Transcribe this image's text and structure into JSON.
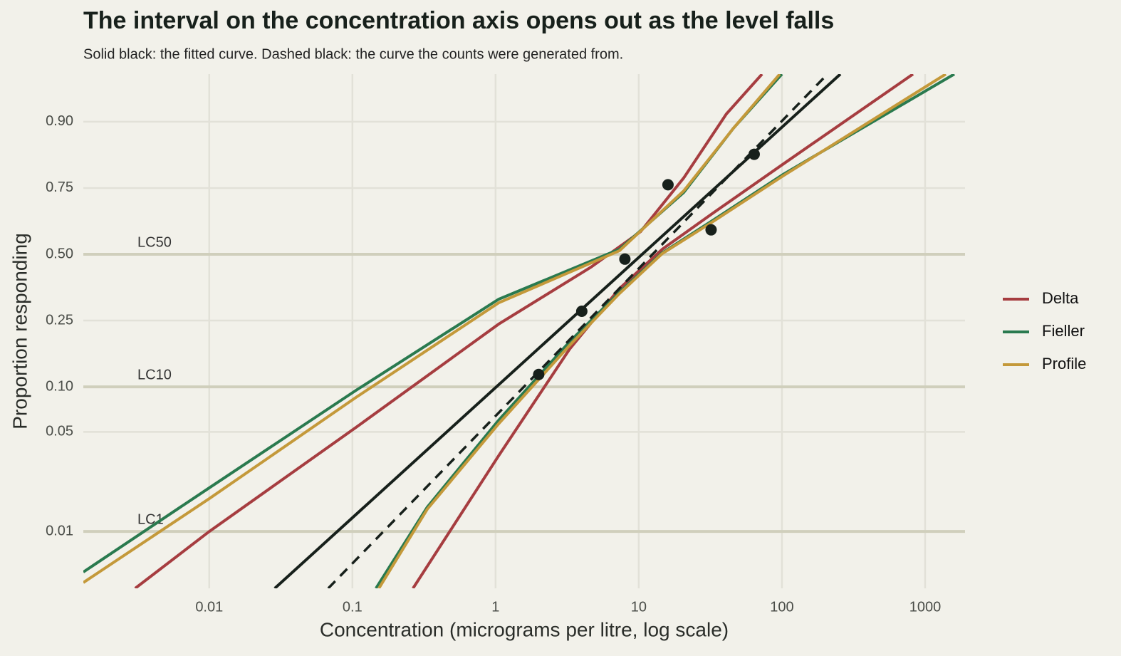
{
  "chart_data": {
    "type": "dose-response",
    "title": "The interval on the concentration axis opens out as the level falls",
    "subtitle": "Solid black: the fitted curve. Dashed black: the curve the counts were generated from.",
    "x_label": "Concentration (micrograms per litre, log scale)",
    "y_label": "Proportion responding",
    "x_scale": "log",
    "y_scale": "logit",
    "grid": true,
    "legend_position": "right",
    "xlim": [
      0.00132,
      1900
    ],
    "ylim": [
      0.00392,
      0.952
    ],
    "xticks": [
      0.01,
      0.1,
      1,
      10,
      100,
      1000
    ],
    "yticks": [
      0.01,
      {
        "value": 0.05,
        "label": "0.05"
      },
      {
        "value": 0.1,
        "label": "0.10"
      },
      0.25,
      {
        "value": 0.5,
        "label": "0.50"
      },
      0.75,
      {
        "value": 0.9,
        "label": "0.90"
      }
    ],
    "reference_lines": [
      {
        "label": "LC50",
        "value": 0.5
      },
      {
        "label": "LC10",
        "value": 0.1
      },
      {
        "label": "LC1",
        "value": 0.01
      }
    ],
    "points": {
      "color": "#17201b",
      "x": [
        2,
        4,
        8,
        16,
        32,
        64
      ],
      "values": [
        0.12,
        0.28,
        0.48,
        0.76,
        0.6,
        0.84
      ]
    },
    "fitted": {
      "color": "#17201b",
      "x": [
        0.0287,
        256
      ],
      "values": [
        0.00392,
        0.952
      ]
    },
    "generating": {
      "color": "#17201b",
      "x": [
        0.0678,
        208
      ],
      "values": [
        0.00392,
        0.952
      ]
    },
    "series": [
      {
        "name": "Delta",
        "color": "#a63d40",
        "curves": [
          {
            "x": [
              0.00304,
              0.01,
              0.106,
              1.05,
              4.64,
              10.3,
              20.6,
              40.9,
              72.6
            ],
            "values": [
              0.00392,
              0.01,
              0.0537,
              0.239,
              0.447,
              0.593,
              0.78,
              0.911,
              0.952
            ]
          },
          {
            "x": [
              0.265,
              1.05,
              3.29,
              7.34,
              14.6,
              32.5,
              102,
              823
            ],
            "values": [
              0.00392,
              0.0342,
              0.172,
              0.362,
              0.521,
              0.662,
              0.817,
              0.952
            ]
          }
        ]
      },
      {
        "name": "Fieller",
        "color": "#2a7a4f",
        "curves": [
          {
            "x": [
              0.00132,
              0.01,
              0.106,
              1.05,
              7.34,
              20.6,
              45.9,
              100
            ],
            "values": [
              0.00513,
              0.0204,
              0.0949,
              0.322,
              0.521,
              0.736,
              0.89,
              0.952
            ]
          },
          {
            "x": [
              0.146,
              0.333,
              1.05,
              3.29,
              7.34,
              14.6,
              32.5,
              102,
              1600
            ],
            "values": [
              0.00392,
              0.0149,
              0.06,
              0.19,
              0.348,
              0.506,
              0.635,
              0.79,
              0.952
            ]
          }
        ]
      },
      {
        "name": "Profile",
        "color": "#c4993a",
        "curves": [
          {
            "x": [
              0.00132,
              0.01,
              0.106,
              1.05,
              7.34,
              20.6,
              45.9,
              96.6
            ],
            "values": [
              0.00431,
              0.0171,
              0.0853,
              0.309,
              0.515,
              0.741,
              0.89,
              0.952
            ]
          },
          {
            "x": [
              0.153,
              0.333,
              1.05,
              3.29,
              7.34,
              14.6,
              32.5,
              102,
              1394
            ],
            "values": [
              0.00392,
              0.0144,
              0.0568,
              0.181,
              0.343,
              0.503,
              0.63,
              0.786,
              0.952
            ]
          }
        ]
      }
    ]
  }
}
